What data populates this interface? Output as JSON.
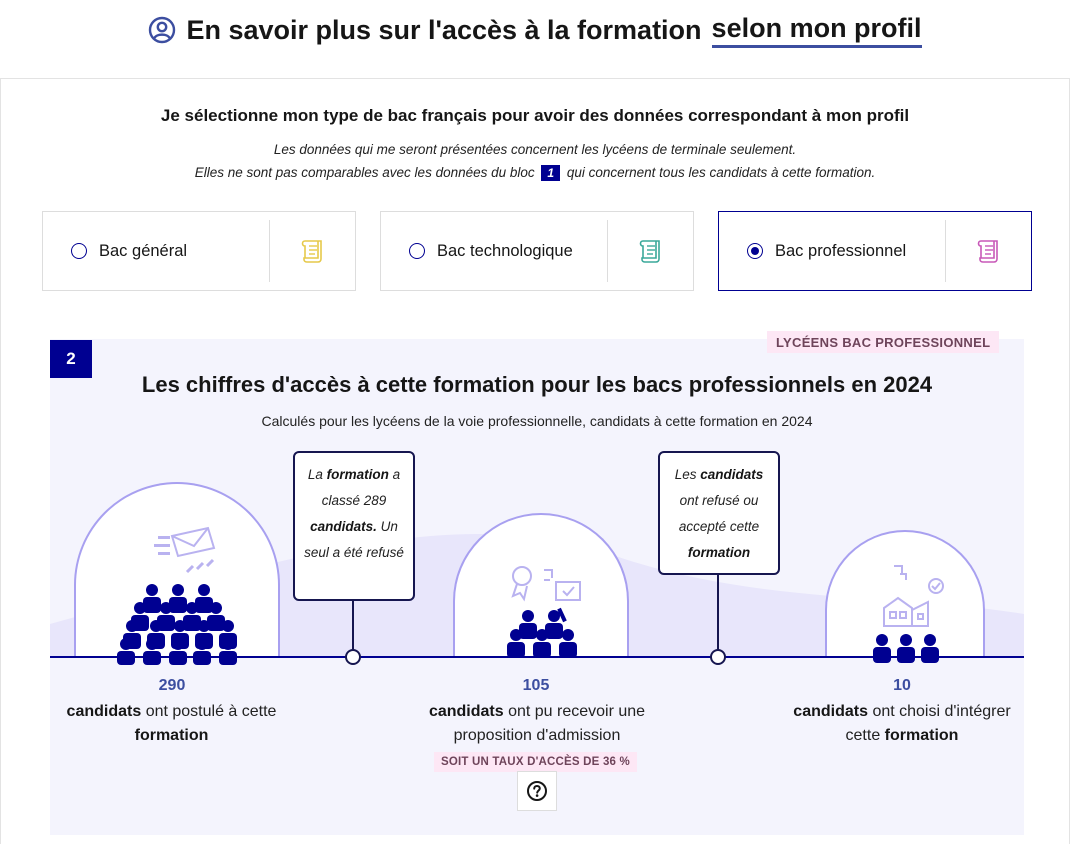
{
  "header": {
    "title_prefix": "En savoir plus sur l'accès à la formation",
    "title_highlight": "selon mon profil"
  },
  "profile_select": {
    "title": "Je sélectionne mon type de bac français pour avoir des données correspondant à mon profil",
    "note_line1": "Les données qui me seront présentées concernent les lycéens de terminale seulement.",
    "note_line2_before": "Elles ne sont pas comparables avec les données du bloc",
    "note_line2_badge": "1",
    "note_line2_after": "qui concernent tous les candidats à cette formation.",
    "options": [
      {
        "label": "Bac général",
        "selected": false,
        "icon": "scroll-icon",
        "icon_color": "#e6c94a"
      },
      {
        "label": "Bac technologique",
        "selected": false,
        "icon": "scroll-icon",
        "icon_color": "#3aa89a"
      },
      {
        "label": "Bac professionnel",
        "selected": true,
        "icon": "scroll-icon",
        "icon_color": "#c858b8"
      }
    ]
  },
  "stats": {
    "section_number": "2",
    "tag": "LYCÉENS BAC PROFESSIONNEL",
    "title": "Les chiffres d'accès à cette formation pour les bacs professionnels en 2024",
    "subtitle": "Calculés pour les lycéens de la voie professionnelle, candidats à cette formation en 2024",
    "callout1": {
      "t1": "La ",
      "b1": "formation",
      "t2": " a classé 289 ",
      "b2": "candidats.",
      "t3": " Un seul a été refusé"
    },
    "callout2": {
      "t1": "Les ",
      "b1": "candidats",
      "t2": " ont refusé ou accepté cette ",
      "b2": "formation"
    },
    "step1": {
      "number": "290",
      "bold": "candidats",
      "text": "ont postulé à cette",
      "bold2": "formation"
    },
    "step2": {
      "number": "105",
      "bold": "candidats",
      "text": "ont pu recevoir une proposition d'admission"
    },
    "step3": {
      "number": "10",
      "bold": "candidats",
      "text": "ont choisi d'intégrer cette",
      "bold2": "formation"
    },
    "rate_badge": "SOIT UN TAUX D'ACCÈS DE 36 %",
    "help_icon": "question-circle-icon",
    "colors": {
      "accent": "#000091",
      "number": "#3c4ea0",
      "tag_bg": "#fde7f5"
    }
  }
}
